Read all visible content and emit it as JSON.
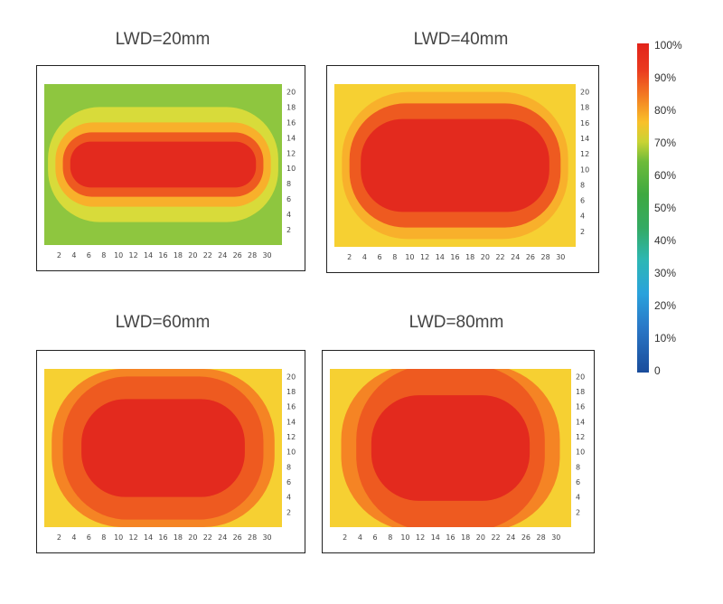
{
  "chart_data": [
    {
      "type": "heatmap",
      "title": "LWD=20mm",
      "x_ticks": [
        "2",
        "4",
        "6",
        "8",
        "10",
        "12",
        "14",
        "16",
        "18",
        "20",
        "22",
        "24",
        "26",
        "28",
        "30"
      ],
      "y_ticks": [
        "20",
        "18",
        "16",
        "14",
        "12",
        "10",
        "8",
        "6",
        "4",
        "2"
      ],
      "zones": [
        {
          "level": 60,
          "center": [
            16,
            10.5
          ],
          "half_extent": [
            16,
            11
          ]
        },
        {
          "level": 70,
          "center": [
            16,
            10.5
          ],
          "half_extent": [
            15.5,
            7.5
          ]
        },
        {
          "level": 80,
          "center": [
            16,
            10.5
          ],
          "half_extent": [
            14.5,
            5.5
          ]
        },
        {
          "level": 90,
          "center": [
            16,
            10.5
          ],
          "half_extent": [
            13.5,
            4.2
          ]
        },
        {
          "level": 100,
          "center": [
            16,
            10.5
          ],
          "half_extent": [
            12.5,
            3
          ]
        }
      ]
    },
    {
      "type": "heatmap",
      "title": "LWD=40mm",
      "x_ticks": [
        "2",
        "4",
        "6",
        "8",
        "10",
        "12",
        "14",
        "16",
        "18",
        "20",
        "22",
        "24",
        "26",
        "28",
        "30"
      ],
      "y_ticks": [
        "20",
        "18",
        "16",
        "14",
        "12",
        "10",
        "8",
        "6",
        "4",
        "2"
      ],
      "zones": [
        {
          "level": 75,
          "center": [
            16,
            10.5
          ],
          "half_extent": [
            16,
            11
          ]
        },
        {
          "level": 80,
          "center": [
            16,
            10.5
          ],
          "half_extent": [
            15,
            9.5
          ]
        },
        {
          "level": 90,
          "center": [
            16,
            10.5
          ],
          "half_extent": [
            14,
            8
          ]
        },
        {
          "level": 100,
          "center": [
            16,
            10.5
          ],
          "half_extent": [
            12.5,
            6
          ]
        }
      ]
    },
    {
      "type": "heatmap",
      "title": "LWD=60mm",
      "x_ticks": [
        "2",
        "4",
        "6",
        "8",
        "10",
        "12",
        "14",
        "16",
        "18",
        "20",
        "22",
        "24",
        "26",
        "28",
        "30"
      ],
      "y_ticks": [
        "20",
        "18",
        "16",
        "14",
        "12",
        "10",
        "8",
        "6",
        "4",
        "2"
      ],
      "zones": [
        {
          "level": 78,
          "center": [
            16,
            10.5
          ],
          "half_extent": [
            16,
            11
          ]
        },
        {
          "level": 85,
          "center": [
            16,
            10.5
          ],
          "half_extent": [
            15,
            10.5
          ]
        },
        {
          "level": 90,
          "center": [
            16,
            10.5
          ],
          "half_extent": [
            13.5,
            9.5
          ]
        },
        {
          "level": 100,
          "center": [
            16,
            10.5
          ],
          "half_extent": [
            11,
            6.5
          ]
        }
      ]
    },
    {
      "type": "heatmap",
      "title": "LWD=80mm",
      "x_ticks": [
        "2",
        "4",
        "6",
        "8",
        "10",
        "12",
        "14",
        "16",
        "18",
        "20",
        "22",
        "24",
        "26",
        "28",
        "30"
      ],
      "y_ticks": [
        "20",
        "18",
        "16",
        "14",
        "12",
        "10",
        "8",
        "6",
        "4",
        "2"
      ],
      "zones": [
        {
          "level": 78,
          "center": [
            16,
            10.5
          ],
          "half_extent": [
            16,
            11
          ]
        },
        {
          "level": 85,
          "center": [
            16,
            10.5
          ],
          "half_extent": [
            14.5,
            11
          ]
        },
        {
          "level": 90,
          "center": [
            16,
            10.5
          ],
          "half_extent": [
            12.5,
            11
          ]
        },
        {
          "level": 100,
          "center": [
            16,
            10.5
          ],
          "half_extent": [
            10.5,
            7
          ]
        }
      ]
    }
  ],
  "legend": {
    "labels": [
      "100%",
      "90%",
      "80%",
      "70%",
      "60%",
      "50%",
      "40%",
      "30%",
      "20%",
      "10%",
      "0"
    ],
    "colors": [
      "#e12b1f",
      "#f06a1e",
      "#f8c72a",
      "#8fc23a",
      "#3ea83a",
      "#5ab04a",
      "#38a96a",
      "#2bb3c6",
      "#2e8fd2",
      "#1e5eb0",
      "#1a4f9e"
    ]
  }
}
